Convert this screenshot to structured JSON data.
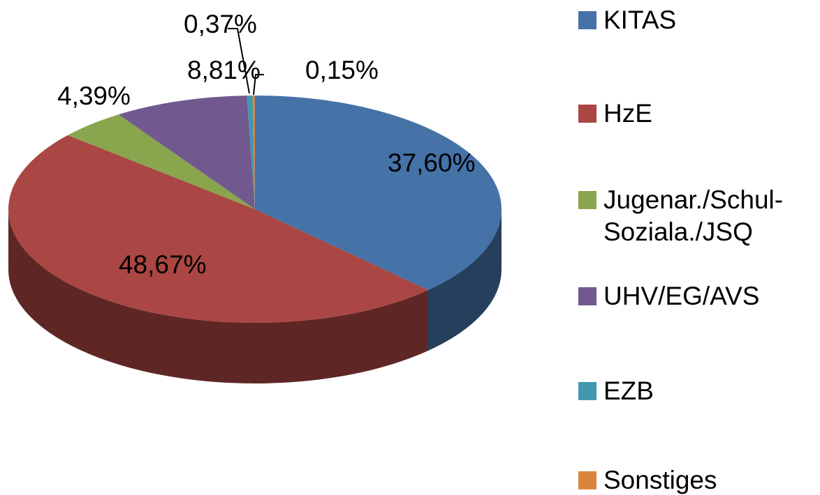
{
  "chart_data": {
    "type": "pie",
    "categories": [
      "KITAS",
      "HzE",
      "Jugenar./Schul-Soziala./JSQ",
      "UHV/EG/AVS",
      "EZB",
      "Sonstiges"
    ],
    "values": [
      37.6,
      48.67,
      4.39,
      8.81,
      0.37,
      0.15
    ],
    "value_labels": [
      "37,60%",
      "48,67%",
      "4,39%",
      "8,81%",
      "0,37%",
      "0,15%"
    ],
    "colors": [
      "#4572a7",
      "#aa4643",
      "#89a54e",
      "#71588f",
      "#4198af",
      "#db843d"
    ],
    "legend": "right"
  }
}
